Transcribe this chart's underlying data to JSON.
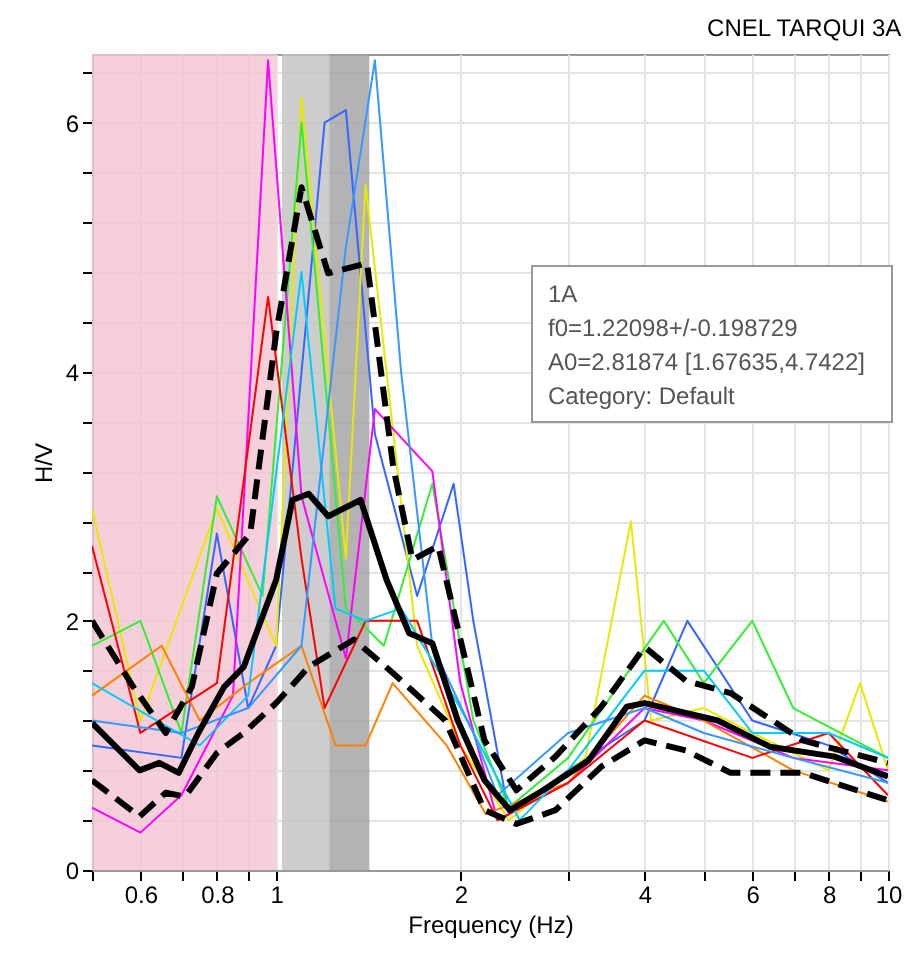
{
  "chart_data": {
    "type": "line",
    "title": "CNEL TARQUI 3A",
    "xlabel": "Frequency (Hz)",
    "ylabel": "H/V",
    "log": "x",
    "grid": true,
    "marker": "none",
    "xlim": [
      0.5,
      10
    ],
    "ylim": [
      0,
      6.55
    ],
    "xticks": [
      {
        "value": 0.5,
        "label": null
      },
      0.6,
      {
        "value": 0.7,
        "label": null
      },
      0.8,
      {
        "value": 0.9,
        "label": null
      },
      1,
      2,
      {
        "value": 3,
        "label": null
      },
      4,
      {
        "value": 5,
        "label": null
      },
      6,
      {
        "value": 7,
        "label": null
      },
      8,
      {
        "value": 9,
        "label": null
      },
      10
    ],
    "yticks": [
      0,
      {
        "value": 0.4,
        "label": null
      },
      {
        "value": 0.8,
        "label": null
      },
      {
        "value": 1.2,
        "label": null
      },
      {
        "value": 1.6,
        "label": null
      },
      2,
      {
        "value": 2.4,
        "label": null
      },
      {
        "value": 2.8,
        "label": null
      },
      {
        "value": 3.2,
        "label": null
      },
      {
        "value": 3.6,
        "label": null
      },
      4,
      {
        "value": 4.4,
        "label": null
      },
      {
        "value": 4.8,
        "label": null
      },
      {
        "value": 5.2,
        "label": null
      },
      {
        "value": 5.6,
        "label": null
      },
      6,
      {
        "value": 6.4,
        "label": null
      }
    ],
    "bands": [
      {
        "axis": "x",
        "from": 0.5,
        "to": 1.0,
        "color": "#f2c4d2"
      },
      {
        "axis": "x",
        "from": 1.022,
        "to": 1.221,
        "color": "#c0c0c0"
      },
      {
        "axis": "x",
        "from": 1.221,
        "to": 1.42,
        "color": "#a0a0a4"
      }
    ],
    "annotations": [
      "1A",
      "f0=1.22098+/-0.198729",
      "A0=2.81874 [1.67635,4.7422]",
      "Category: Default"
    ],
    "series": [
      {
        "color": "#3366ff",
        "x": [
          0.5,
          0.7,
          0.8,
          0.9,
          1.0,
          1.2,
          1.3,
          1.45,
          1.7,
          1.95,
          2.1,
          2.4,
          3,
          4,
          4.7,
          6,
          8,
          10
        ],
        "values": [
          1.0,
          0.9,
          2.7,
          1.3,
          1.8,
          6.0,
          6.1,
          3.5,
          2.2,
          3.1,
          2.0,
          0.45,
          0.8,
          1.2,
          2.0,
          1.2,
          1.0,
          0.7
        ]
      },
      {
        "color": "#e8e800",
        "x": [
          0.5,
          0.6,
          0.8,
          1.0,
          1.1,
          1.3,
          1.4,
          1.7,
          2.0,
          2.4,
          3.2,
          3.8,
          4.1,
          5,
          6,
          8,
          9,
          10
        ],
        "values": [
          2.9,
          1.2,
          2.9,
          1.8,
          6.2,
          2.5,
          5.5,
          1.8,
          1.0,
          0.4,
          0.9,
          2.8,
          1.2,
          1.3,
          1.1,
          0.8,
          1.5,
          0.8
        ]
      },
      {
        "color": "#33ee33",
        "x": [
          0.5,
          0.6,
          0.7,
          0.8,
          0.95,
          1.1,
          1.3,
          1.5,
          1.8,
          2.1,
          2.4,
          3,
          4.3,
          5,
          6,
          7,
          10
        ],
        "values": [
          1.8,
          2.0,
          1.1,
          3.0,
          2.2,
          6.0,
          2.1,
          1.8,
          3.1,
          1.2,
          0.5,
          0.9,
          2.0,
          1.5,
          2.0,
          1.3,
          0.9
        ]
      },
      {
        "color": "#ff00ff",
        "x": [
          0.5,
          0.6,
          0.7,
          0.85,
          0.97,
          1.1,
          1.3,
          1.45,
          1.8,
          2.0,
          2.3,
          3,
          4,
          5,
          7,
          10
        ],
        "values": [
          0.5,
          0.3,
          0.6,
          1.4,
          6.5,
          3.0,
          1.7,
          3.7,
          3.2,
          1.5,
          0.4,
          0.7,
          1.3,
          1.2,
          0.9,
          0.8
        ]
      },
      {
        "color": "#ff8000",
        "x": [
          0.5,
          0.65,
          0.75,
          0.9,
          1.1,
          1.25,
          1.4,
          1.55,
          1.9,
          2.2,
          3,
          4,
          5,
          7,
          10
        ],
        "values": [
          1.4,
          1.8,
          1.2,
          1.5,
          1.8,
          1.0,
          1.0,
          1.5,
          1.0,
          0.45,
          0.7,
          1.4,
          1.2,
          0.8,
          0.55
        ]
      },
      {
        "color": "#ff0000",
        "x": [
          0.5,
          0.6,
          0.8,
          0.97,
          1.1,
          1.2,
          1.4,
          1.7,
          2,
          2.3,
          3,
          4,
          6,
          8,
          10
        ],
        "values": [
          2.6,
          1.1,
          1.5,
          4.6,
          2.5,
          1.3,
          2.0,
          2.0,
          1.0,
          0.4,
          0.7,
          1.2,
          0.9,
          1.1,
          0.6
        ]
      },
      {
        "color": "#00ccff",
        "x": [
          0.5,
          0.75,
          0.9,
          1.1,
          1.25,
          1.4,
          1.6,
          2.0,
          2.5,
          3,
          4,
          5,
          6,
          8,
          10
        ],
        "values": [
          1.5,
          1.0,
          1.4,
          4.8,
          2.1,
          2.0,
          2.1,
          1.3,
          0.4,
          0.8,
          1.6,
          1.6,
          1.1,
          1.1,
          0.9
        ]
      },
      {
        "color": "#3399ff",
        "x": [
          0.5,
          0.7,
          0.9,
          1.1,
          1.3,
          1.45,
          1.6,
          1.8,
          2.1,
          2.3,
          3,
          4,
          5,
          7,
          10
        ],
        "values": [
          1.2,
          1.1,
          1.3,
          1.8,
          5.0,
          6.5,
          4.0,
          1.8,
          1.1,
          0.6,
          1.1,
          1.3,
          1.1,
          0.9,
          0.7
        ]
      },
      {
        "color": "#000000",
        "line_style": "solid",
        "x": [
          0.5,
          0.598,
          0.644,
          0.693,
          0.746,
          0.822,
          0.885,
          1.0,
          1.063,
          1.13,
          1.216,
          1.374,
          1.515,
          1.65,
          1.8,
          1.98,
          2.19,
          2.41,
          2.73,
          3.24,
          3.74,
          4.0,
          4.67,
          5.27,
          6.41,
          8.18,
          10
        ],
        "values": [
          1.18,
          0.8,
          0.86,
          0.78,
          1.1,
          1.47,
          1.63,
          2.33,
          2.97,
          3.02,
          2.84,
          2.97,
          2.33,
          1.9,
          1.82,
          1.2,
          0.72,
          0.48,
          0.64,
          0.88,
          1.31,
          1.34,
          1.26,
          1.2,
          0.99,
          0.91,
          0.75
        ]
      },
      {
        "color": "#000000",
        "line_style": "dashed",
        "x": [
          0.5,
          0.584,
          0.66,
          0.728,
          0.8,
          0.907,
          1.0,
          1.1,
          1.216,
          1.408,
          1.553,
          1.67,
          1.84,
          2.19,
          2.47,
          2.86,
          3.4,
          4.0,
          4.67,
          5.53,
          7.25,
          10
        ],
        "values": [
          2.0,
          1.47,
          1.1,
          1.47,
          2.38,
          2.7,
          4.31,
          5.48,
          4.79,
          4.87,
          3.24,
          2.49,
          2.6,
          1.04,
          0.64,
          0.91,
          1.31,
          1.79,
          1.52,
          1.42,
          1.04,
          0.86
        ]
      },
      {
        "color": "#000000",
        "line_style": "dashed",
        "x": [
          0.5,
          0.598,
          0.66,
          0.71,
          0.8,
          0.885,
          1.0,
          1.13,
          1.34,
          1.553,
          1.89,
          2.19,
          2.47,
          2.86,
          3.4,
          4.0,
          4.67,
          5.53,
          7.25,
          10
        ],
        "values": [
          0.72,
          0.43,
          0.62,
          0.59,
          0.94,
          1.1,
          1.34,
          1.63,
          1.85,
          1.58,
          1.2,
          0.48,
          0.37,
          0.48,
          0.83,
          1.04,
          0.96,
          0.78,
          0.78,
          0.56
        ]
      }
    ]
  }
}
